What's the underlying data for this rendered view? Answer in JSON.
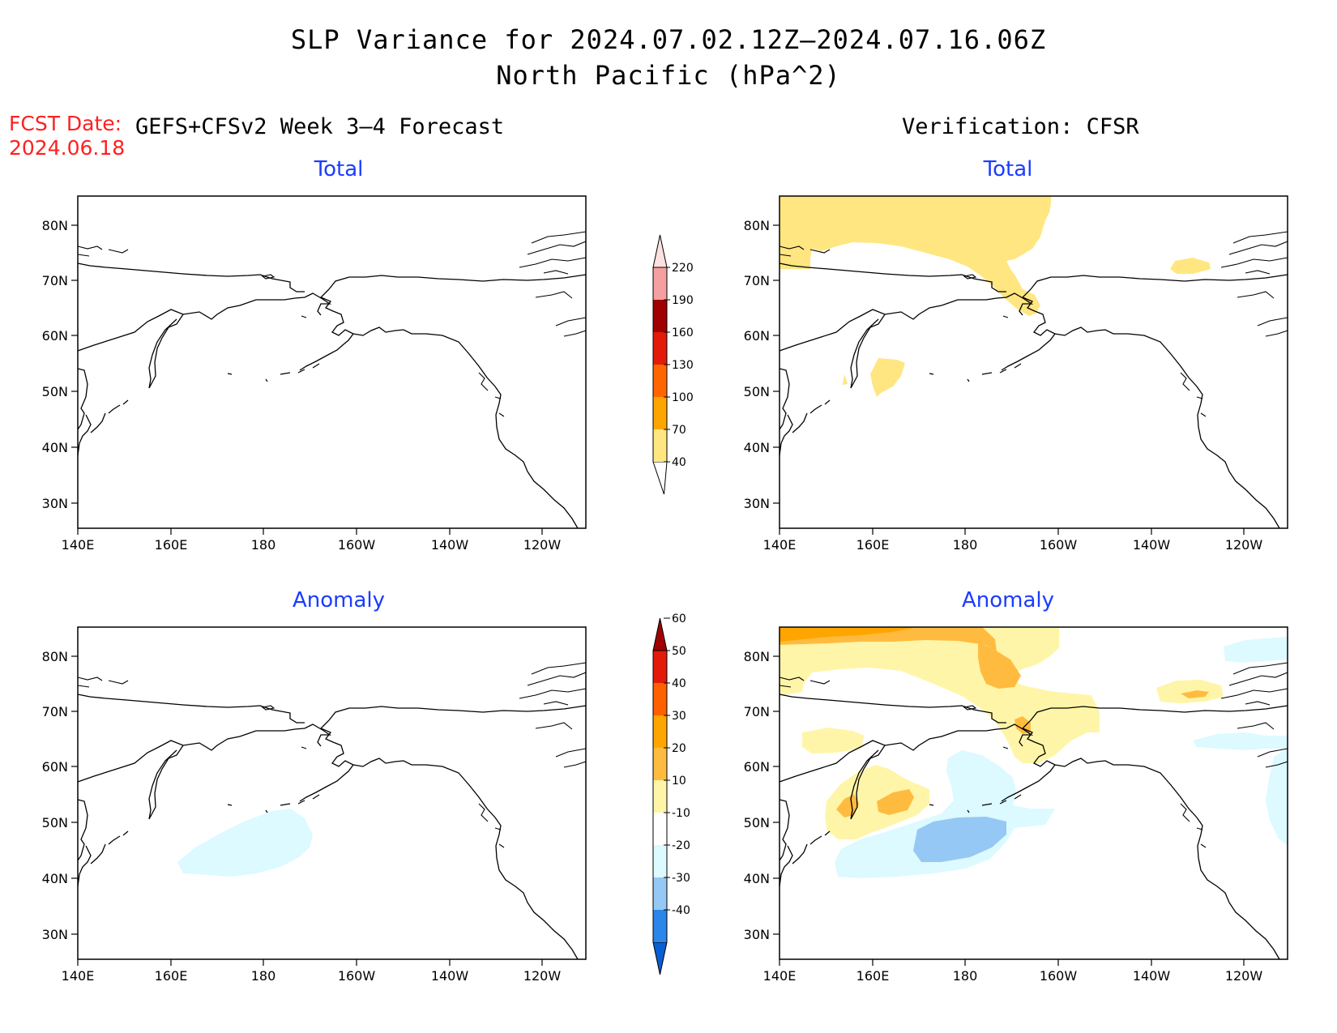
{
  "title_line1": "SLP Variance for 2024.07.02.12Z—2024.07.16.06Z",
  "title_line2": "North Pacific (hPa^2)",
  "fcst_label": "FCST Date:",
  "fcst_date": "2024.06.18",
  "left_header": "GEFS+CFSv2 Week 3–4 Forecast",
  "right_header": "Verification: CFSR",
  "panels": [
    {
      "id": "fcst-total",
      "title": "Total"
    },
    {
      "id": "verif-total",
      "title": "Total"
    },
    {
      "id": "fcst-anomaly",
      "title": "Anomaly"
    },
    {
      "id": "verif-anomaly",
      "title": "Anomaly"
    }
  ],
  "lat_labels": [
    "80N",
    "70N",
    "60N",
    "50N",
    "40N",
    "30N"
  ],
  "lon_labels": [
    "140E",
    "160E",
    "180",
    "160W",
    "140W",
    "120W"
  ],
  "total_colorbar": {
    "levels": [
      "40",
      "70",
      "100",
      "130",
      "160",
      "190",
      "220"
    ],
    "colors": [
      "#ffe680",
      "#ffa500",
      "#ff6600",
      "#e31a0a",
      "#a00000",
      "#f4a0a0",
      "#fde0e0"
    ]
  },
  "anomaly_colorbar": {
    "levels": [
      "-40",
      "-30",
      "-20",
      "-10",
      "10",
      "20",
      "30",
      "40",
      "50",
      "60"
    ],
    "colors": [
      "#0a5fd0",
      "#2a86e8",
      "#96c8f5",
      "#dcfaff",
      "#ffffff",
      "#fff5a8",
      "#ffbb40",
      "#ffa500",
      "#ff6000",
      "#e31a0a",
      "#a00000"
    ]
  },
  "colors": {
    "title_blue": "#1a3cff",
    "fcst_red": "#ff2020",
    "yellow_40": "#ffe680",
    "light_yellow": "#fff5a8",
    "orange": "#ffbb40",
    "light_cyan": "#dcfaff",
    "light_blue": "#96c8f5"
  }
}
